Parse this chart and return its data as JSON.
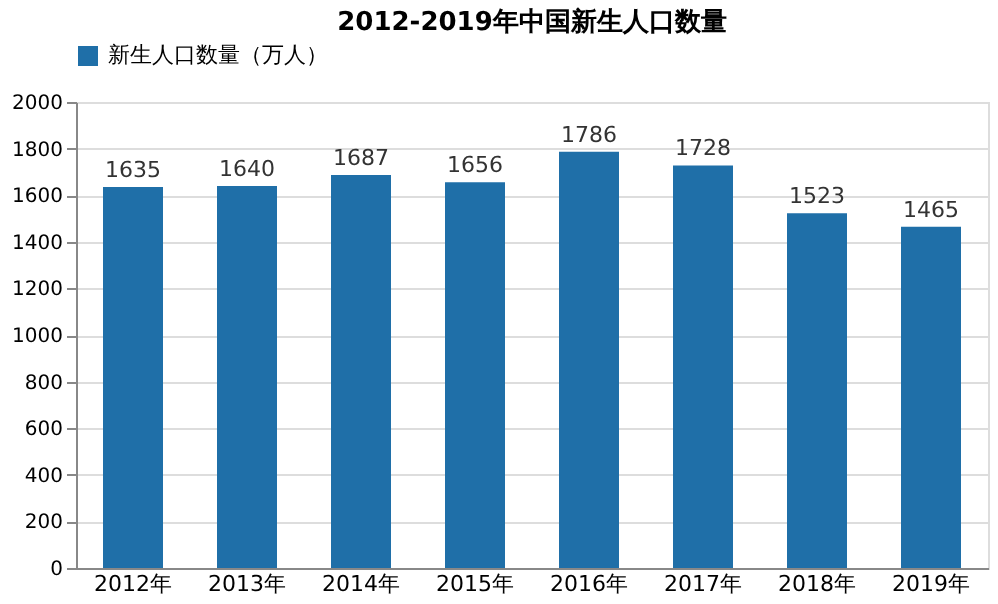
{
  "chart_data": {
    "type": "bar",
    "title": "2012-2019年中国新生人口数量",
    "categories": [
      "2012年",
      "2013年",
      "2014年",
      "2015年",
      "2016年",
      "2017年",
      "2018年",
      "2019年"
    ],
    "series": [
      {
        "name": "新生人口数量（万人）",
        "color": "#1f6fa8",
        "values": [
          1635,
          1640,
          1687,
          1656,
          1786,
          1728,
          1523,
          1465
        ]
      }
    ],
    "ylim": [
      0,
      2000
    ],
    "yticks": [
      0,
      200,
      400,
      600,
      800,
      1000,
      1200,
      1400,
      1600,
      1800,
      2000
    ],
    "grid": "y",
    "legend": "top",
    "data_labels": true
  }
}
